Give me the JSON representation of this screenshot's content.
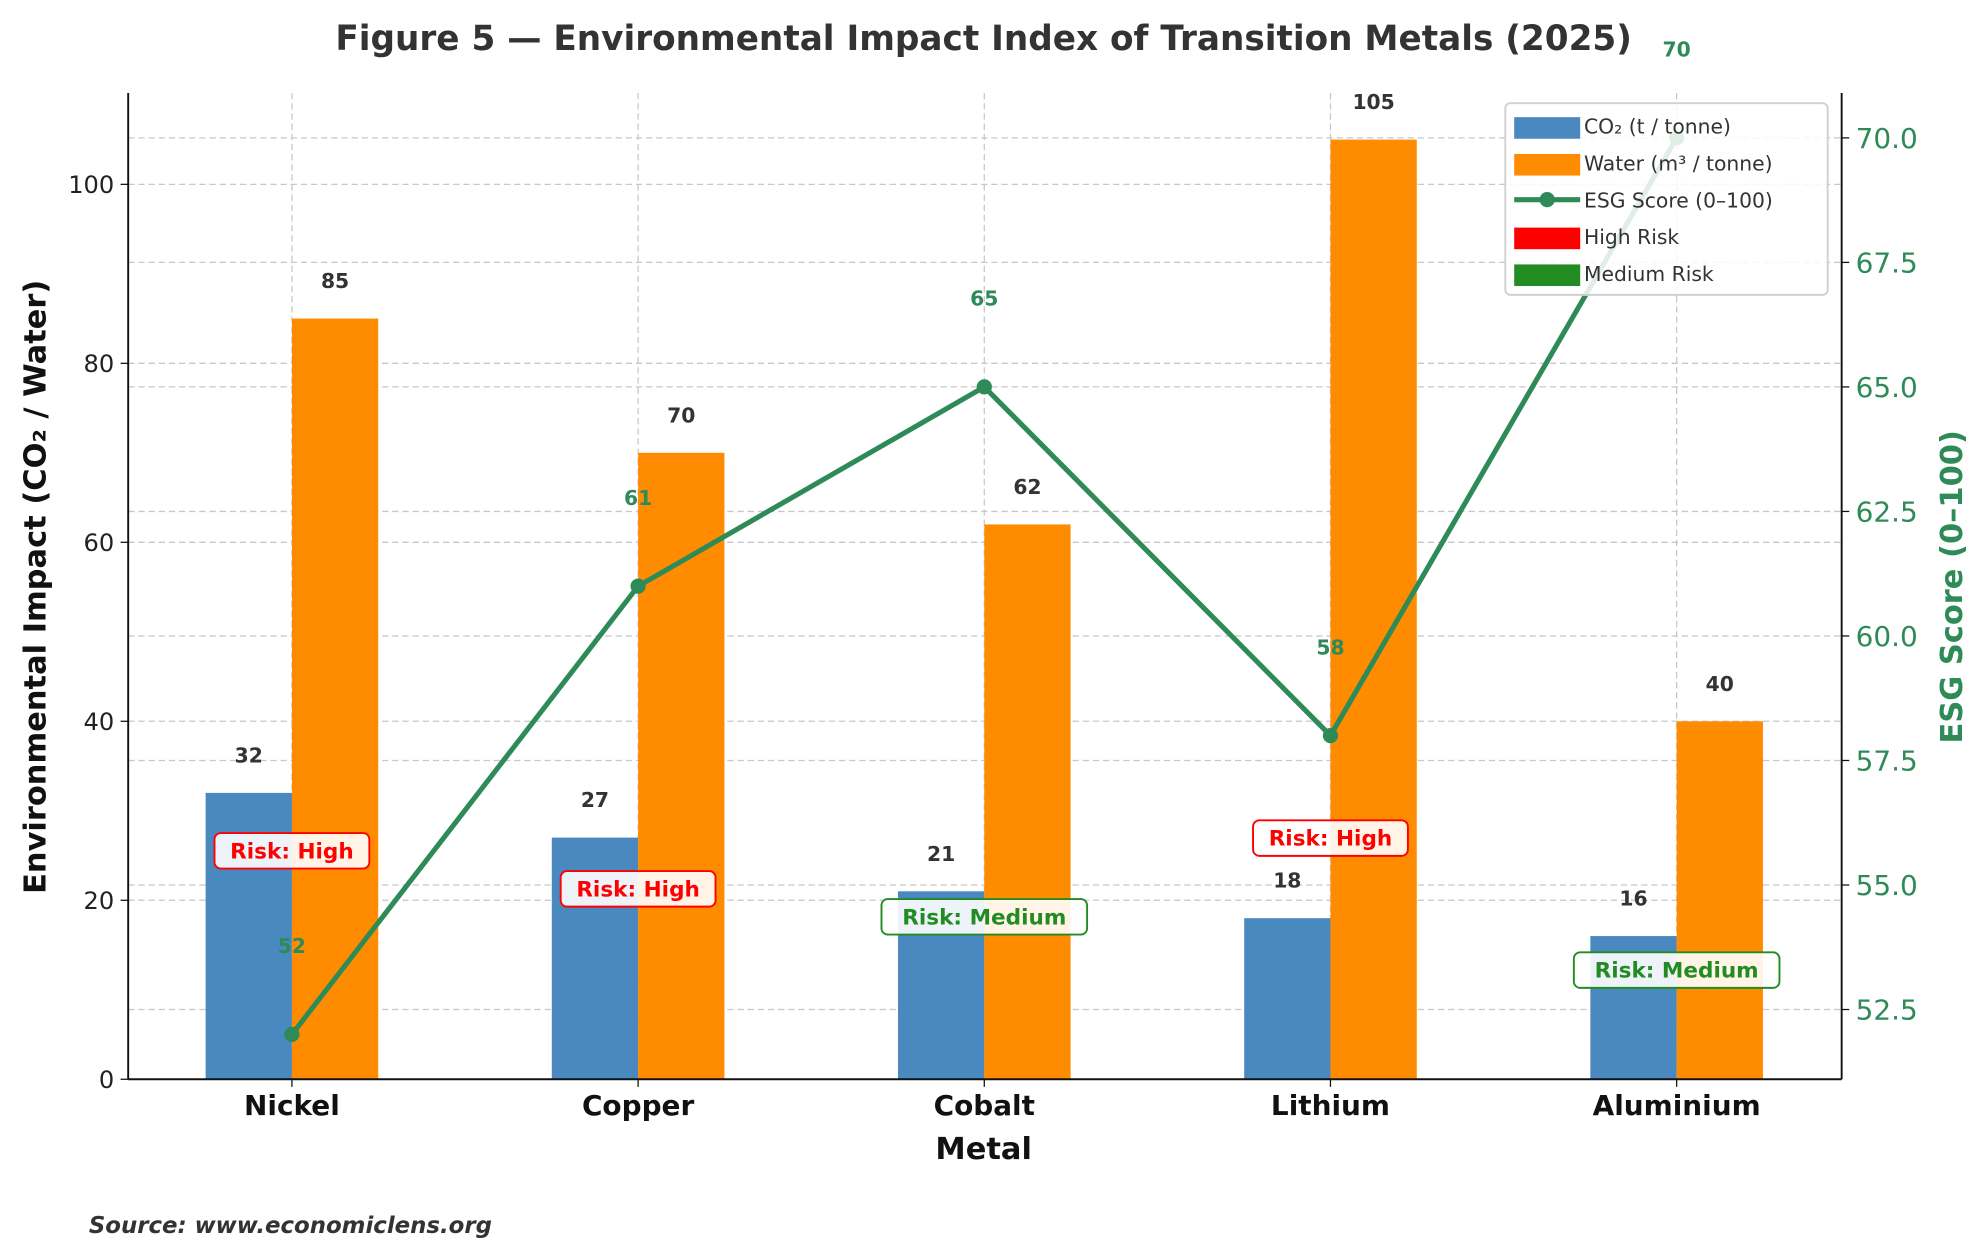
{
  "chart_data": {
    "type": "bar",
    "title": "Figure 5 — Environmental Impact Index of Transition Metals (2025)",
    "xlabel": "Metal",
    "ylabel": "Environmental Impact (CO₂ / Water)",
    "y2label": "ESG Score (0–100)",
    "categories": [
      "Nickel",
      "Copper",
      "Cobalt",
      "Lithium",
      "Aluminium"
    ],
    "series": [
      {
        "name": "CO₂ (t / tonne)",
        "type": "bar",
        "axis": "left",
        "color": "#4a89c0",
        "values": [
          32,
          27,
          21,
          18,
          16
        ]
      },
      {
        "name": "Water (m³ / tonne)",
        "type": "bar",
        "axis": "left",
        "color": "#ff8c00",
        "values": [
          85,
          70,
          62,
          105,
          40
        ]
      },
      {
        "name": "ESG Score (0–100)",
        "type": "line",
        "axis": "right",
        "color": "#2e8b57",
        "values": [
          52,
          61,
          65,
          58,
          70
        ]
      }
    ],
    "risk": [
      {
        "label": "Risk: High",
        "level": "High"
      },
      {
        "label": "Risk: High",
        "level": "High"
      },
      {
        "label": "Risk: Medium",
        "level": "Medium"
      },
      {
        "label": "Risk: High",
        "level": "High"
      },
      {
        "label": "Risk: Medium",
        "level": "Medium"
      }
    ],
    "risk_legend": [
      {
        "name": "High Risk",
        "color": "#ff0000"
      },
      {
        "name": "Medium Risk",
        "color": "#228b22"
      }
    ],
    "ylim": [
      0,
      110.2
    ],
    "y2lim": [
      51.1,
      70.9
    ],
    "yticks": [
      "0",
      "20",
      "40",
      "60",
      "80",
      "100"
    ],
    "y2ticks": [
      "52.5",
      "55.0",
      "57.5",
      "60.0",
      "62.5",
      "65.0",
      "67.5",
      "70.0"
    ],
    "grid": true,
    "legend_position": "top-right"
  },
  "source": "Source: www.economiclens.org"
}
